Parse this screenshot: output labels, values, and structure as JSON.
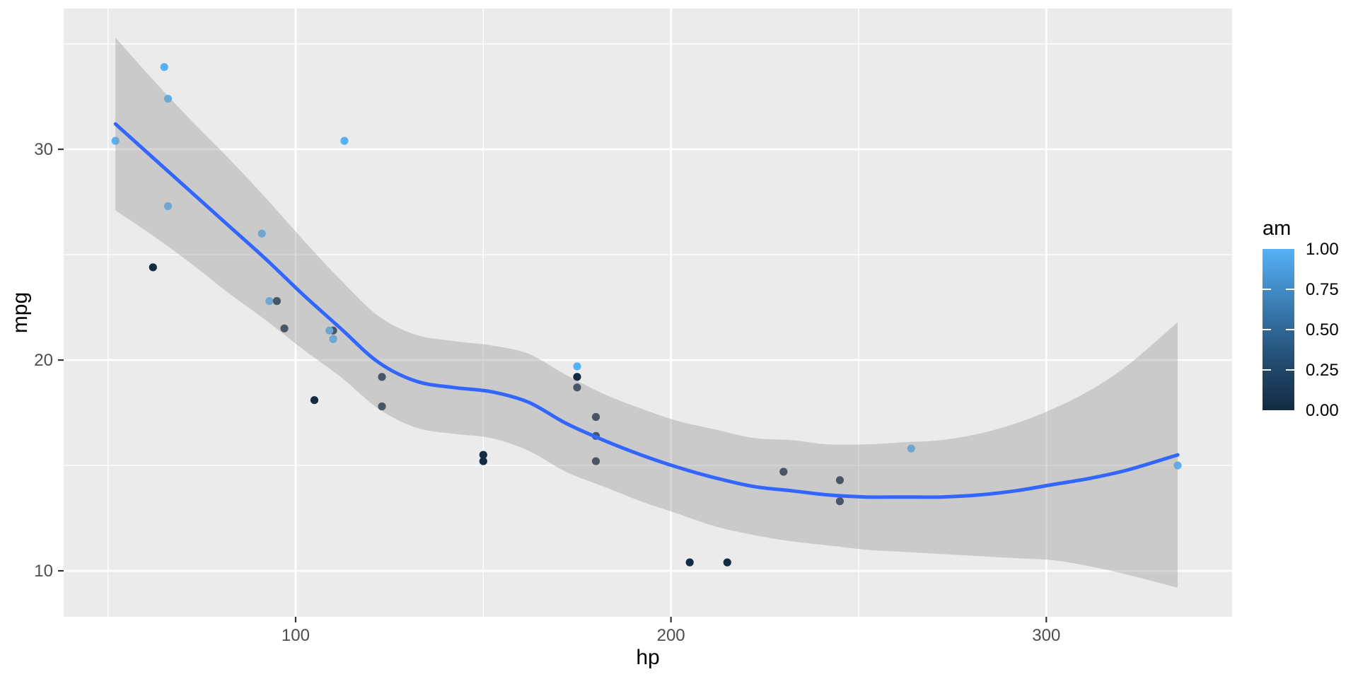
{
  "chart_data": {
    "type": "scatter",
    "title": "",
    "xlabel": "hp",
    "ylabel": "mpg",
    "xlim": [
      38.2,
      349.5
    ],
    "ylim": [
      7.82,
      36.68
    ],
    "x_major_ticks": [
      100,
      200,
      300
    ],
    "x_minor_ticks": [
      50,
      150,
      250
    ],
    "y_major_ticks": [
      10,
      20,
      30
    ],
    "y_minor_ticks": [
      15,
      25,
      35
    ],
    "grid": "major+minor, white on grey panel",
    "legend_position": "right",
    "points": [
      {
        "hp": 110,
        "mpg": 21.0,
        "am": 1
      },
      {
        "hp": 110,
        "mpg": 21.0,
        "am": 1
      },
      {
        "hp": 93,
        "mpg": 22.8,
        "am": 1
      },
      {
        "hp": 110,
        "mpg": 21.4,
        "am": 0
      },
      {
        "hp": 175,
        "mpg": 18.7,
        "am": 0
      },
      {
        "hp": 105,
        "mpg": 18.1,
        "am": 0
      },
      {
        "hp": 245,
        "mpg": 14.3,
        "am": 0
      },
      {
        "hp": 62,
        "mpg": 24.4,
        "am": 0
      },
      {
        "hp": 95,
        "mpg": 22.8,
        "am": 0
      },
      {
        "hp": 123,
        "mpg": 19.2,
        "am": 0
      },
      {
        "hp": 123,
        "mpg": 17.8,
        "am": 0
      },
      {
        "hp": 180,
        "mpg": 16.4,
        "am": 0
      },
      {
        "hp": 180,
        "mpg": 17.3,
        "am": 0
      },
      {
        "hp": 180,
        "mpg": 15.2,
        "am": 0
      },
      {
        "hp": 205,
        "mpg": 10.4,
        "am": 0
      },
      {
        "hp": 215,
        "mpg": 10.4,
        "am": 0
      },
      {
        "hp": 230,
        "mpg": 14.7,
        "am": 0
      },
      {
        "hp": 66,
        "mpg": 32.4,
        "am": 1
      },
      {
        "hp": 52,
        "mpg": 30.4,
        "am": 1
      },
      {
        "hp": 65,
        "mpg": 33.9,
        "am": 1
      },
      {
        "hp": 97,
        "mpg": 21.5,
        "am": 0
      },
      {
        "hp": 150,
        "mpg": 15.5,
        "am": 0
      },
      {
        "hp": 150,
        "mpg": 15.2,
        "am": 0
      },
      {
        "hp": 245,
        "mpg": 13.3,
        "am": 0
      },
      {
        "hp": 175,
        "mpg": 19.2,
        "am": 0
      },
      {
        "hp": 66,
        "mpg": 27.3,
        "am": 1
      },
      {
        "hp": 91,
        "mpg": 26.0,
        "am": 1
      },
      {
        "hp": 113,
        "mpg": 30.4,
        "am": 1
      },
      {
        "hp": 264,
        "mpg": 15.8,
        "am": 1
      },
      {
        "hp": 175,
        "mpg": 19.7,
        "am": 1
      },
      {
        "hp": 335,
        "mpg": 15.0,
        "am": 1
      },
      {
        "hp": 109,
        "mpg": 21.4,
        "am": 1
      }
    ],
    "smooth": {
      "method": "loess",
      "anchors_hp_fit_halfwidth": [
        [
          52,
          31.2,
          4.1
        ],
        [
          62,
          29.6,
          3.7
        ],
        [
          72,
          28.0,
          3.4
        ],
        [
          82,
          26.4,
          3.2
        ],
        [
          92,
          24.8,
          2.9
        ],
        [
          102,
          23.1,
          2.6
        ],
        [
          112,
          21.5,
          2.3
        ],
        [
          122,
          19.9,
          2.2
        ],
        [
          132,
          19.0,
          2.2
        ],
        [
          142,
          18.7,
          2.2
        ],
        [
          152,
          18.5,
          2.2
        ],
        [
          162,
          18.0,
          2.3
        ],
        [
          172,
          17.0,
          2.3
        ],
        [
          182,
          16.2,
          2.2
        ],
        [
          192,
          15.5,
          2.2
        ],
        [
          202,
          14.9,
          2.2
        ],
        [
          212,
          14.4,
          2.3
        ],
        [
          222,
          14.0,
          2.3
        ],
        [
          232,
          13.8,
          2.4
        ],
        [
          242,
          13.6,
          2.4
        ],
        [
          252,
          13.5,
          2.5
        ],
        [
          262,
          13.5,
          2.6
        ],
        [
          272,
          13.5,
          2.7
        ],
        [
          282,
          13.6,
          2.9
        ],
        [
          292,
          13.8,
          3.2
        ],
        [
          302,
          14.1,
          3.6
        ],
        [
          312,
          14.4,
          4.2
        ],
        [
          322,
          14.8,
          5.0
        ],
        [
          335,
          15.5,
          6.3
        ]
      ]
    },
    "legend": {
      "title": "am",
      "labels": [
        "1.00",
        "0.75",
        "0.50",
        "0.25",
        "0.00"
      ],
      "values": [
        1.0,
        0.75,
        0.5,
        0.25,
        0.0
      ]
    },
    "colors": {
      "point_low": "#132B43",
      "point_high": "#56B1F7",
      "gradient_stops": [
        "#56B1F7",
        "#428BC6",
        "#2F6796",
        "#204668",
        "#132B43"
      ],
      "smooth_line": "#3366FF",
      "ribbon_fill": "rgba(153,153,153,0.4)",
      "panel_bg": "#EBEBEB",
      "grid": "#FFFFFF",
      "tick_text": "#4D4D4D",
      "tick_mark": "#333333"
    }
  },
  "axes": {
    "x_title": "hp",
    "y_title": "mpg"
  },
  "legend": {
    "title": "am"
  }
}
